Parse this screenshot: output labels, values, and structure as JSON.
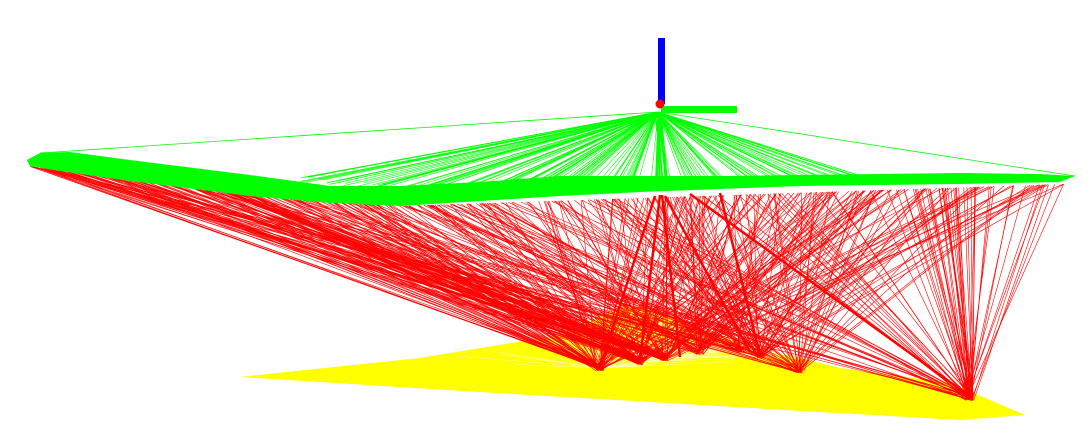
{
  "viewport": {
    "background": "#ffffff"
  },
  "scene": {
    "colors": {
      "kite": "#00ff00",
      "lines": "#ff0000",
      "ground": "#ffff00",
      "axis_x": "#00ff00",
      "axis_y": "#ff0000",
      "axis_z": "#0000ff"
    },
    "icons": {
      "axes": "xyz-axes-icon"
    }
  }
}
